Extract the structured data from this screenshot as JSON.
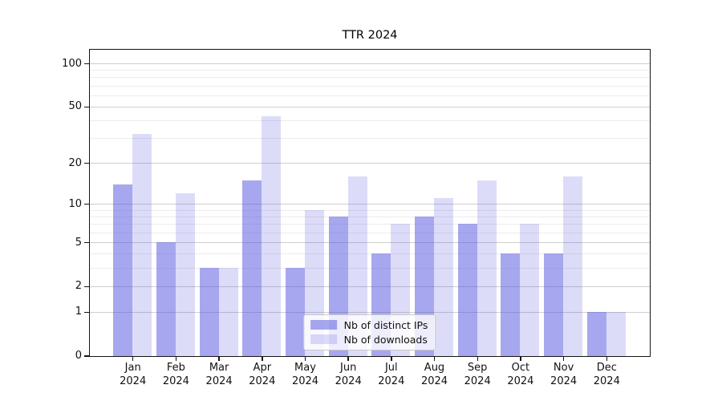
{
  "title": "TTR 2024",
  "colors": {
    "bar_base": "#5050e0",
    "grid_major": "#cfcfcf",
    "grid_minor": "#ececec",
    "axis": "#141414",
    "legend_border": "#c8c8c8"
  },
  "legend": {
    "items": [
      {
        "label": "Nb of distinct IPs"
      },
      {
        "label": "Nb of downloads"
      }
    ]
  },
  "chart_data": {
    "type": "bar",
    "title": "TTR 2024",
    "categories": [
      "Jan 2024",
      "Feb 2024",
      "Mar 2024",
      "Apr 2024",
      "May 2024",
      "Jun 2024",
      "Jul 2024",
      "Aug 2024",
      "Sep 2024",
      "Oct 2024",
      "Nov 2024",
      "Dec 2024"
    ],
    "series": [
      {
        "name": "Nb of distinct IPs",
        "color": "#5050e0",
        "opacity": 0.5,
        "values": [
          14,
          5,
          3,
          15,
          3,
          8,
          4,
          8,
          7,
          4,
          4,
          1
        ]
      },
      {
        "name": "Nb of downloads",
        "color": "#5050e0",
        "opacity": 0.2,
        "values": [
          32,
          12,
          3,
          43,
          9,
          16,
          7,
          11,
          15,
          7,
          16,
          1
        ]
      }
    ],
    "yscale": "symlog",
    "ylim": [
      0,
      125
    ],
    "yticks": [
      0,
      1,
      2,
      5,
      10,
      20,
      50,
      100
    ],
    "yticks_minor": [
      3,
      4,
      6,
      7,
      8,
      9,
      30,
      40,
      60,
      70,
      80,
      90
    ],
    "xlabel": "",
    "ylabel": "",
    "grid": true,
    "legend_position": "lower center"
  }
}
